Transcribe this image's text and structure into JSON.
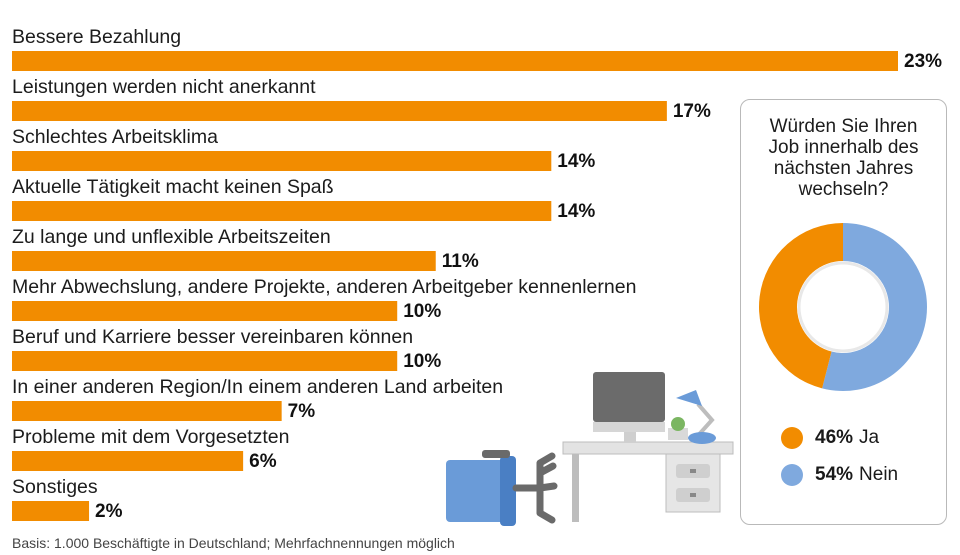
{
  "chart_data": [
    {
      "type": "bar",
      "orientation": "horizontal",
      "categories": [
        "Bessere Bezahlung",
        "Leistungen werden nicht anerkannt",
        "Schlechtes Arbeitsklima",
        "Aktuelle Tätigkeit macht keinen Spaß",
        "Zu lange und unflexible Arbeitszeiten",
        "Mehr Abwechslung, andere Projekte, anderen Arbeitgeber kennenlernen",
        "Beruf und Karriere besser vereinbaren können",
        "In einer anderen Region/In einem anderen Land arbeiten",
        "Probleme mit dem Vorgesetzten",
        "Sonstiges"
      ],
      "values": [
        23,
        17,
        14,
        14,
        11,
        10,
        10,
        7,
        6,
        2
      ],
      "value_labels": [
        "23%",
        "17%",
        "14%",
        "14%",
        "11%",
        "10%",
        "10%",
        "7%",
        "6%",
        "2%"
      ],
      "unit": "%",
      "xlim": [
        0,
        23
      ],
      "bar_color": "#f28c00"
    },
    {
      "type": "pie",
      "style": "donut",
      "title": "Würden Sie Ihren Job innerhalb des nächsten Jahres wechseln?",
      "title_lines": [
        "Würden Sie Ihren",
        "Job innerhalb des",
        "nächsten Jahres",
        "wechseln?"
      ],
      "slices": [
        {
          "label": "Ja",
          "value": 46,
          "pct_label": "46%",
          "color": "#f28c00"
        },
        {
          "label": "Nein",
          "value": 54,
          "pct_label": "54%",
          "color": "#7fa9de"
        }
      ]
    }
  ],
  "footer": {
    "partial_text": "Basis: 1.000 Beschäftigte in Deutschland; Mehrfachnennungen möglich"
  }
}
